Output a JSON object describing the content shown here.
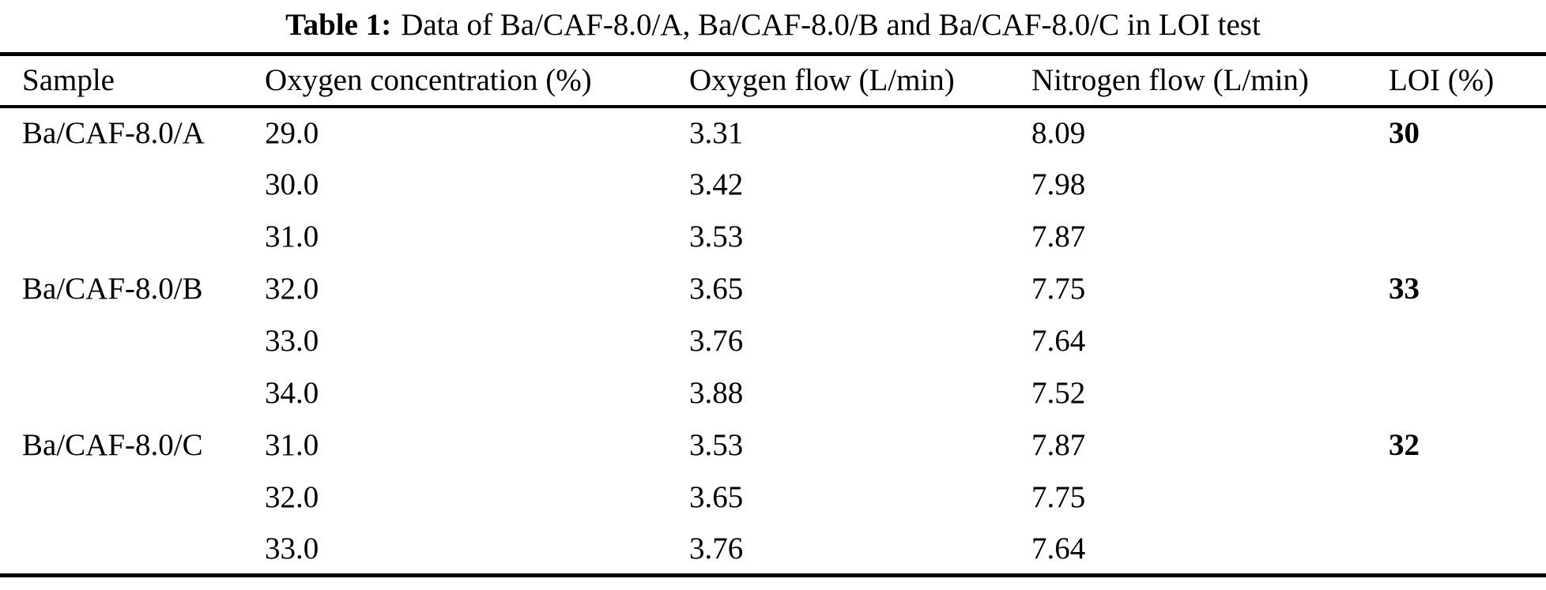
{
  "caption": {
    "label": "Table 1:",
    "text": "Data of Ba/CAF-8.0/A, Ba/CAF-8.0/B and Ba/CAF-8.0/C in LOI test"
  },
  "table": {
    "headers": {
      "sample": "Sample",
      "oxygen_concentration": "Oxygen concentration (%)",
      "oxygen_flow": "Oxygen flow (L/min)",
      "nitrogen_flow": "Nitrogen flow (L/min)",
      "loi": "LOI (%)"
    },
    "rows": [
      {
        "sample": "Ba/CAF-8.0/A",
        "oxygen_concentration": "29.0",
        "oxygen_flow": "3.31",
        "nitrogen_flow": "8.09",
        "loi": "30"
      },
      {
        "sample": "",
        "oxygen_concentration": "30.0",
        "oxygen_flow": "3.42",
        "nitrogen_flow": "7.98",
        "loi": ""
      },
      {
        "sample": "",
        "oxygen_concentration": "31.0",
        "oxygen_flow": "3.53",
        "nitrogen_flow": "7.87",
        "loi": ""
      },
      {
        "sample": "Ba/CAF-8.0/B",
        "oxygen_concentration": "32.0",
        "oxygen_flow": "3.65",
        "nitrogen_flow": "7.75",
        "loi": "33"
      },
      {
        "sample": "",
        "oxygen_concentration": "33.0",
        "oxygen_flow": "3.76",
        "nitrogen_flow": "7.64",
        "loi": ""
      },
      {
        "sample": "",
        "oxygen_concentration": "34.0",
        "oxygen_flow": "3.88",
        "nitrogen_flow": "7.52",
        "loi": ""
      },
      {
        "sample": "Ba/CAF-8.0/C",
        "oxygen_concentration": "31.0",
        "oxygen_flow": "3.53",
        "nitrogen_flow": "7.87",
        "loi": "32"
      },
      {
        "sample": "",
        "oxygen_concentration": "32.0",
        "oxygen_flow": "3.65",
        "nitrogen_flow": "7.75",
        "loi": ""
      },
      {
        "sample": "",
        "oxygen_concentration": "33.0",
        "oxygen_flow": "3.76",
        "nitrogen_flow": "7.64",
        "loi": ""
      }
    ]
  },
  "colors": {
    "text": "#000000",
    "background": "#ffffff",
    "rule": "#000000"
  }
}
